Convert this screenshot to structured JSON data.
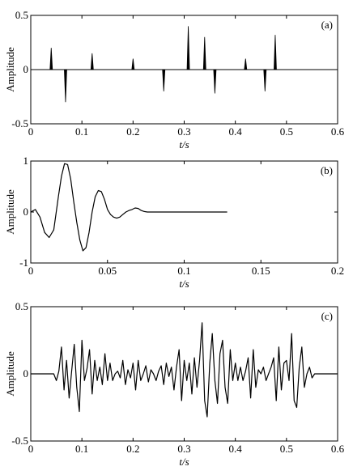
{
  "chart_data": [
    {
      "type": "line",
      "panel_label": "(a)",
      "xlabel": "t/s",
      "ylabel": "Amplitude",
      "xlim": [
        0,
        0.6
      ],
      "ylim": [
        -0.5,
        0.5
      ],
      "xticks": [
        0,
        0.1,
        0.2,
        0.3,
        0.4,
        0.5,
        0.6
      ],
      "xtick_labels": [
        "0",
        "0.1",
        "0.2",
        "0.3",
        "0.4",
        "0.5",
        "0.6"
      ],
      "yticks": [
        -0.5,
        0,
        0.5
      ],
      "ytick_labels": [
        "-0.5",
        "0",
        "0.5"
      ],
      "grid": false,
      "series": [
        {
          "style": "spikes",
          "x": [
            0.04,
            0.068,
            0.12,
            0.2,
            0.26,
            0.308,
            0.34,
            0.36,
            0.42,
            0.458,
            0.478
          ],
          "y": [
            0.2,
            -0.3,
            0.15,
            0.1,
            -0.2,
            0.4,
            0.3,
            -0.22,
            0.1,
            -0.2,
            0.32
          ]
        }
      ]
    },
    {
      "type": "line",
      "panel_label": "(b)",
      "xlabel": "t/s",
      "ylabel": "Amplitude",
      "xlim": [
        0,
        0.2
      ],
      "ylim": [
        -1,
        1
      ],
      "xticks": [
        0,
        0.05,
        0.1,
        0.15,
        0.2
      ],
      "xtick_labels": [
        "0",
        "0.05",
        "0.1",
        "0.15",
        "0.2"
      ],
      "yticks": [
        -1,
        0,
        1
      ],
      "ytick_labels": [
        "-1",
        "0",
        "1"
      ],
      "grid": false,
      "series": [
        {
          "style": "line",
          "x": [
            0,
            0.003,
            0.006,
            0.009,
            0.012,
            0.015,
            0.018,
            0.02,
            0.022,
            0.024,
            0.026,
            0.028,
            0.03,
            0.032,
            0.034,
            0.036,
            0.038,
            0.04,
            0.042,
            0.044,
            0.046,
            0.048,
            0.05,
            0.052,
            0.054,
            0.056,
            0.058,
            0.06,
            0.062,
            0.064,
            0.066,
            0.068,
            0.07,
            0.072,
            0.074,
            0.076,
            0.08,
            0.09,
            0.1,
            0.11,
            0.12,
            0.128
          ],
          "y": [
            0,
            0.05,
            -0.1,
            -0.4,
            -0.5,
            -0.35,
            0.3,
            0.7,
            0.95,
            0.93,
            0.65,
            0.2,
            -0.2,
            -0.55,
            -0.76,
            -0.7,
            -0.4,
            0.0,
            0.3,
            0.42,
            0.4,
            0.25,
            0.05,
            -0.05,
            -0.1,
            -0.12,
            -0.1,
            -0.05,
            0.0,
            0.03,
            0.05,
            0.08,
            0.07,
            0.03,
            0.01,
            0.0,
            0.0,
            0.0,
            0.0,
            0.0,
            0.0,
            0.0
          ]
        }
      ]
    },
    {
      "type": "line",
      "panel_label": "(c)",
      "xlabel": "t/s",
      "ylabel": "Amplitude",
      "xlim": [
        0,
        0.6
      ],
      "ylim": [
        -0.5,
        0.5
      ],
      "xticks": [
        0,
        0.1,
        0.2,
        0.3,
        0.4,
        0.5,
        0.6
      ],
      "xtick_labels": [
        "0",
        "0.1",
        "0.2",
        "0.3",
        "0.4",
        "0.5",
        "0.6"
      ],
      "yticks": [
        -0.5,
        0,
        0.5
      ],
      "ytick_labels": [
        "-0.5",
        "0",
        "0.5"
      ],
      "grid": false,
      "series": [
        {
          "style": "line",
          "x": [
            0,
            0.045,
            0.05,
            0.055,
            0.06,
            0.065,
            0.07,
            0.075,
            0.08,
            0.085,
            0.09,
            0.095,
            0.1,
            0.105,
            0.11,
            0.115,
            0.12,
            0.125,
            0.13,
            0.135,
            0.14,
            0.145,
            0.15,
            0.155,
            0.16,
            0.165,
            0.17,
            0.175,
            0.18,
            0.185,
            0.19,
            0.195,
            0.2,
            0.205,
            0.21,
            0.215,
            0.22,
            0.225,
            0.23,
            0.235,
            0.24,
            0.245,
            0.25,
            0.255,
            0.26,
            0.265,
            0.27,
            0.275,
            0.28,
            0.285,
            0.29,
            0.295,
            0.3,
            0.305,
            0.31,
            0.315,
            0.32,
            0.325,
            0.33,
            0.335,
            0.34,
            0.345,
            0.35,
            0.355,
            0.36,
            0.365,
            0.37,
            0.375,
            0.38,
            0.385,
            0.39,
            0.395,
            0.4,
            0.405,
            0.41,
            0.415,
            0.42,
            0.425,
            0.43,
            0.435,
            0.44,
            0.445,
            0.45,
            0.455,
            0.46,
            0.465,
            0.47,
            0.475,
            0.48,
            0.485,
            0.49,
            0.495,
            0.5,
            0.505,
            0.51,
            0.515,
            0.52,
            0.525,
            0.53,
            0.535,
            0.54,
            0.545,
            0.55,
            0.555,
            0.56,
            0.6
          ],
          "y": [
            0,
            0,
            -0.05,
            0.02,
            0.2,
            -0.12,
            0.1,
            -0.18,
            0.02,
            0.22,
            -0.1,
            -0.28,
            0.25,
            -0.05,
            0.04,
            0.18,
            -0.15,
            0.1,
            -0.05,
            0.05,
            -0.08,
            0.15,
            -0.05,
            0.08,
            -0.05,
            0.0,
            0.02,
            -0.03,
            0.1,
            -0.08,
            0.03,
            -0.03,
            0.08,
            -0.12,
            0.1,
            -0.05,
            0.0,
            0.06,
            -0.06,
            0.03,
            0.0,
            -0.05,
            0.02,
            0.06,
            -0.08,
            0.08,
            -0.02,
            0.05,
            -0.12,
            0.05,
            0.18,
            -0.2,
            0.1,
            -0.05,
            0.08,
            -0.15,
            0.12,
            -0.1,
            0.1,
            0.38,
            -0.2,
            -0.32,
            0.08,
            0.3,
            -0.05,
            -0.22,
            0.15,
            0.25,
            -0.1,
            -0.22,
            0.18,
            -0.05,
            0.08,
            -0.05,
            0.05,
            -0.05,
            0.02,
            0.12,
            -0.18,
            0.18,
            -0.1,
            0.03,
            0.0,
            0.05,
            -0.05,
            0.0,
            0.05,
            0.12,
            -0.2,
            0.2,
            -0.12,
            0.08,
            0.1,
            -0.05,
            0.3,
            -0.2,
            -0.25,
            0.05,
            0.2,
            -0.1,
            0.0,
            0.05,
            -0.03,
            0.0,
            0.0,
            0.0
          ]
        }
      ]
    }
  ]
}
